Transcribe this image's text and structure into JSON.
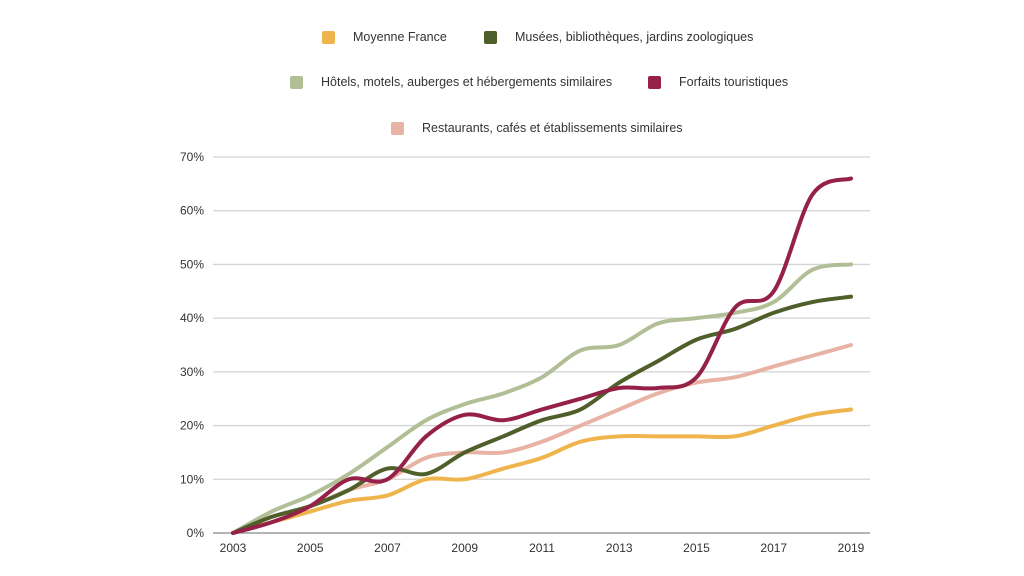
{
  "chart_data": {
    "type": "line",
    "title": "",
    "xlabel": "",
    "ylabel": "",
    "x": [
      2003,
      2004,
      2005,
      2006,
      2007,
      2008,
      2009,
      2010,
      2011,
      2012,
      2013,
      2014,
      2015,
      2016,
      2017,
      2018,
      2019
    ],
    "x_tick_labels": [
      "2003",
      "2005",
      "2007",
      "2009",
      "2011",
      "2013",
      "2015",
      "2017",
      "2019"
    ],
    "y_tick_labels": [
      "0%",
      "10%",
      "20%",
      "30%",
      "40%",
      "50%",
      "60%",
      "70%"
    ],
    "ylim": [
      0,
      70
    ],
    "y_unit": "%",
    "grid": "horizontal",
    "legend_position": "top",
    "series": [
      {
        "name": "Moyenne France",
        "color": "#EFB54C",
        "values": [
          0,
          2,
          4,
          6,
          7,
          10,
          10,
          12,
          14,
          17,
          18,
          18,
          18,
          18,
          20,
          22,
          23
        ]
      },
      {
        "name": "Musées, bibliothèques, jardins zoologiques",
        "color": "#4F5F2A",
        "values": [
          0,
          3,
          5,
          8,
          12,
          11,
          15,
          18,
          21,
          23,
          28,
          32,
          36,
          38,
          41,
          43,
          44
        ]
      },
      {
        "name": "Hôtels, motels, auberges et hébergements similaires",
        "color": "#B2BF96",
        "values": [
          0,
          4,
          7,
          11,
          16,
          21,
          24,
          26,
          29,
          34,
          35,
          39,
          40,
          41,
          43,
          49,
          50
        ]
      },
      {
        "name": "Forfaits touristiques",
        "color": "#952148",
        "values": [
          0,
          2,
          5,
          10,
          10,
          18,
          22,
          21,
          23,
          25,
          27,
          27,
          29,
          42,
          45,
          63,
          66
        ]
      },
      {
        "name": "Restaurants, cafés et établissements similaires",
        "color": "#E8B3A4",
        "values": [
          0,
          3,
          5,
          8,
          10,
          14,
          15,
          15,
          17,
          20,
          23,
          26,
          28,
          29,
          31,
          33,
          35
        ]
      }
    ]
  }
}
